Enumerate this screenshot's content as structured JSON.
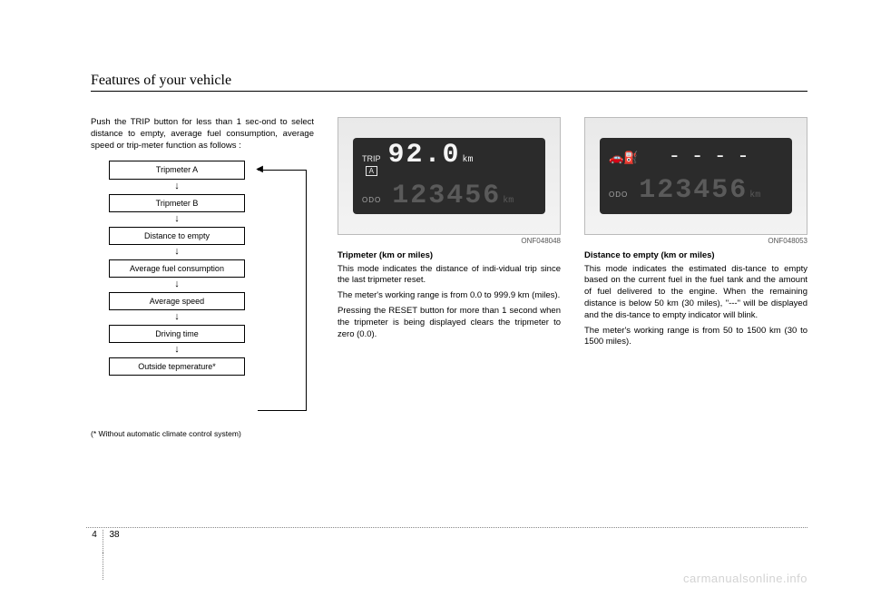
{
  "header": {
    "title": "Features of your vehicle"
  },
  "col1": {
    "intro": "Push the TRIP button for less than 1 sec-ond to select distance to empty, average fuel consumption, average speed or trip-meter function as follows :",
    "flow": {
      "items": [
        "Tripmeter A",
        "Tripmeter B",
        "Distance to empty",
        "Average fuel consumption",
        "Average speed",
        "Driving time",
        "Outside tepmerature*"
      ]
    },
    "footnote": "(* Without automatic climate control system)"
  },
  "col2": {
    "lcd": {
      "trip_label": "TRIP",
      "trip_set": "A",
      "value": "92.0",
      "unit": "km",
      "odo_label": "ODO",
      "odo_value": "123456",
      "odo_unit": "km"
    },
    "caption": "ONF048048",
    "subhead": "Tripmeter (km or miles)",
    "p1": "This mode indicates the distance of indi-vidual trip since the last tripmeter reset.",
    "p2": "The meter's  working range is from 0.0 to 999.9 km (miles).",
    "p3": "Pressing the RESET button for more than 1 second when the tripmeter is being displayed clears the tripmeter to zero (0.0)."
  },
  "col3": {
    "lcd": {
      "fuel_icon": "⛽",
      "car_icon": "🚗",
      "dashes": "----",
      "odo_label": "ODO",
      "odo_value": "123456",
      "odo_unit": "km"
    },
    "caption": "ONF048053",
    "subhead": "Distance to empty (km or miles)",
    "p1": "This mode indicates the estimated dis-tance to empty based on the current fuel in the fuel tank and the amount of fuel delivered to the engine. When the remaining distance is below 50 km (30 miles), \"---\" will be displayed and the dis-tance to empty indicator will blink.",
    "p2": "The meter's working range is from 50 to 1500 km (30 to 1500 miles)."
  },
  "footer": {
    "section": "4",
    "page": "38"
  },
  "watermark": "carmanualsonline.info"
}
